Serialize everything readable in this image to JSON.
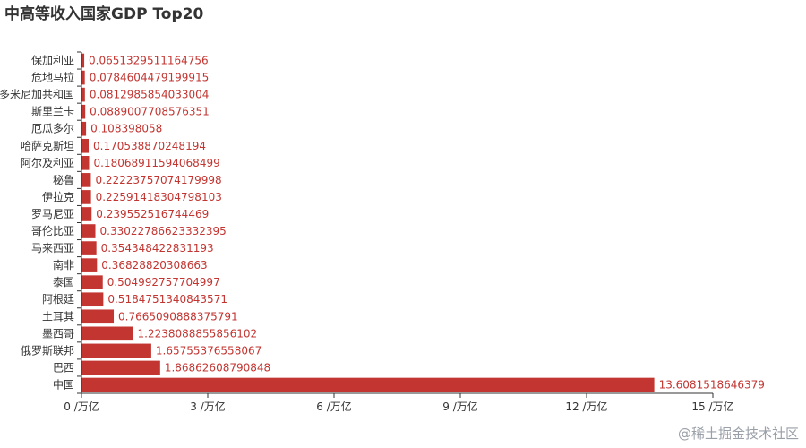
{
  "chart_data": {
    "type": "bar",
    "orientation": "horizontal",
    "title": "中高等收入国家GDP Top20",
    "categories": [
      "保加利亚",
      "危地马拉",
      "多米尼加共和国",
      "斯里兰卡",
      "厄瓜多尔",
      "哈萨克斯坦",
      "阿尔及利亚",
      "秘鲁",
      "伊拉克",
      "罗马尼亚",
      "哥伦比亚",
      "马来西亚",
      "南非",
      "泰国",
      "阿根廷",
      "土耳其",
      "墨西哥",
      "俄罗斯联邦",
      "巴西",
      "中国"
    ],
    "values": [
      0.0651329511164756,
      0.0784604479199915,
      0.0812985854033004,
      0.0889007708576351,
      0.108398058,
      0.170538870248194,
      0.18068911594068499,
      0.22223757074179998,
      0.22591418304798103,
      0.239552516744469,
      0.33022786623332395,
      0.354348422831193,
      0.36828820308663,
      0.504992757704997,
      0.5184751340843571,
      0.7665090888375791,
      1.2238088855856102,
      1.65755376558067,
      1.86862608790848,
      13.6081518646379
    ],
    "value_labels": [
      "0.0651329511164756",
      "0.0784604479199915",
      "0.0812985854033004",
      "0.0889007708576351",
      "0.108398058",
      "0.170538870248194",
      "0.18068911594068499",
      "0.22223757074179998",
      "0.22591418304798103",
      "0.239552516744469",
      "0.33022786623332395",
      "0.354348422831193",
      "0.36828820308663",
      "0.504992757704997",
      "0.5184751340843571",
      "0.7665090888375791",
      "1.2238088855856102",
      "1.65755376558067",
      "1.86862608790848",
      "13.6081518646379"
    ],
    "xlim": [
      0,
      15
    ],
    "x_ticks": [
      0,
      3,
      6,
      9,
      12,
      15
    ],
    "x_tick_labels": [
      "0 /万亿",
      "3 /万亿",
      "6 /万亿",
      "9 /万亿",
      "12 /万亿",
      "15 /万亿"
    ],
    "grid": false,
    "bar_color": "#c23531",
    "label_color": "#c23531"
  },
  "watermark": "@稀土掘金技术社区"
}
